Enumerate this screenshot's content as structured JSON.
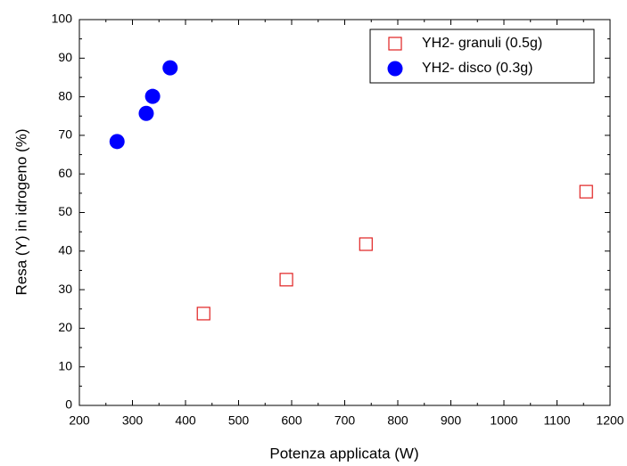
{
  "chart_data": {
    "type": "scatter",
    "x_label": "Potenza applicata (W)",
    "y_label": "Resa (Y) in idrogeno (%)",
    "xlim": [
      200,
      1200
    ],
    "xticks": [
      200,
      300,
      400,
      500,
      600,
      700,
      800,
      900,
      1000,
      1100,
      1200
    ],
    "ylim": [
      0,
      100
    ],
    "yticks": [
      0,
      10,
      20,
      30,
      40,
      50,
      60,
      70,
      80,
      90,
      100
    ],
    "legend": "top-right",
    "series": [
      {
        "name": "YH2- granuli (0.5g)",
        "color": "#e02020",
        "marker": "open-square",
        "x": [
          434,
          590,
          740,
          1155
        ],
        "values": [
          23.8,
          32.6,
          41.8,
          55.4
        ]
      },
      {
        "name": "YH2- disco (0.3g)",
        "color": "#0000ff",
        "marker": "filled-circle",
        "x": [
          271,
          326,
          338,
          371
        ],
        "values": [
          68.4,
          75.7,
          80.1,
          87.5
        ]
      }
    ]
  }
}
